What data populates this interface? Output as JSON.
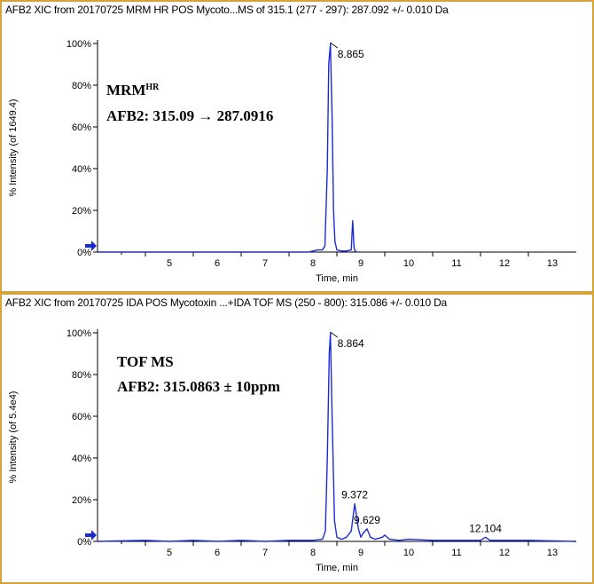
{
  "colors": {
    "trace": "#1a2bd6",
    "border": "#d4a33a",
    "marker": "#1a2bd6"
  },
  "chart_data": [
    {
      "type": "line",
      "title": "AFB2 XIC from 20170725   MRM  HR  POS  Mycoto...MS of 315.1 (277 - 297): 287.092 +/- 0.010 Da",
      "xlabel": "Time, min",
      "ylabel": "% Intensity (of 1649.4)",
      "annotation": {
        "line1": "MRM",
        "line1_sup": "HR",
        "line2": "AFB2: 315.09 → 287.0916"
      },
      "xlim": [
        4,
        14
      ],
      "ylim": [
        0,
        100
      ],
      "xticks": [
        "5",
        "6",
        "7",
        "8",
        "9",
        "10",
        "11",
        "12",
        "13"
      ],
      "yticks": [
        "0%",
        "20%",
        "40%",
        "60%",
        "80%",
        "100%"
      ],
      "peak_labels": [
        {
          "x": 8.865,
          "y": 100,
          "label": "8.865"
        }
      ],
      "series": [
        {
          "x": [
            4.0,
            8.4,
            8.5,
            8.6,
            8.7,
            8.75,
            8.8,
            8.83,
            8.865,
            8.9,
            8.93,
            8.96,
            9.0,
            9.1,
            9.2,
            9.3,
            9.33,
            9.36,
            9.38,
            9.42
          ],
          "values": [
            0,
            0,
            0.5,
            1,
            1,
            3,
            40,
            90,
            100,
            65,
            20,
            5,
            1,
            0.5,
            0.5,
            1,
            15,
            2,
            0.5,
            0
          ]
        }
      ]
    },
    {
      "type": "line",
      "title": "AFB2 XIC from 20170725   IDA  POS  Mycotoxin  ...+IDA TOF MS (250 - 800): 315.086 +/- 0.010 Da",
      "xlabel": "Time, min",
      "ylabel": "% Intensity (of 5.4e4)",
      "annotation": {
        "line1": "TOF MS",
        "line2": "AFB2: 315.0863 ± 10ppm"
      },
      "xlim": [
        4,
        14
      ],
      "ylim": [
        0,
        100
      ],
      "xticks": [
        "5",
        "6",
        "7",
        "8",
        "9",
        "10",
        "11",
        "12",
        "13"
      ],
      "yticks": [
        "0%",
        "20%",
        "40%",
        "60%",
        "80%",
        "100%"
      ],
      "peak_labels": [
        {
          "x": 8.864,
          "y": 100,
          "label": "8.864"
        },
        {
          "x": 9.372,
          "y": 18,
          "label": "9.372"
        },
        {
          "x": 9.629,
          "y": 6,
          "label": "9.629"
        },
        {
          "x": 12.104,
          "y": 2,
          "label": "12.104"
        }
      ],
      "series": [
        {
          "x": [
            4.0,
            5.0,
            5.5,
            6.0,
            6.5,
            7.0,
            7.5,
            8.0,
            8.5,
            8.7,
            8.76,
            8.8,
            8.84,
            8.864,
            8.9,
            8.95,
            9.0,
            9.1,
            9.2,
            9.3,
            9.372,
            9.45,
            9.5,
            9.55,
            9.629,
            9.7,
            9.8,
            9.95,
            10.0,
            10.1,
            10.3,
            10.5,
            11.0,
            11.5,
            12.0,
            12.104,
            12.2,
            13.0,
            14.0
          ],
          "values": [
            0,
            0.5,
            0,
            0.5,
            0,
            0.5,
            0,
            0.5,
            0.5,
            1,
            5,
            40,
            90,
            100,
            60,
            10,
            2,
            1,
            2,
            5,
            18,
            6,
            2,
            4,
            6,
            2,
            1,
            2,
            3,
            1,
            0.5,
            1,
            0.5,
            0.5,
            0.5,
            2,
            0.5,
            0.5,
            0
          ]
        }
      ]
    }
  ]
}
